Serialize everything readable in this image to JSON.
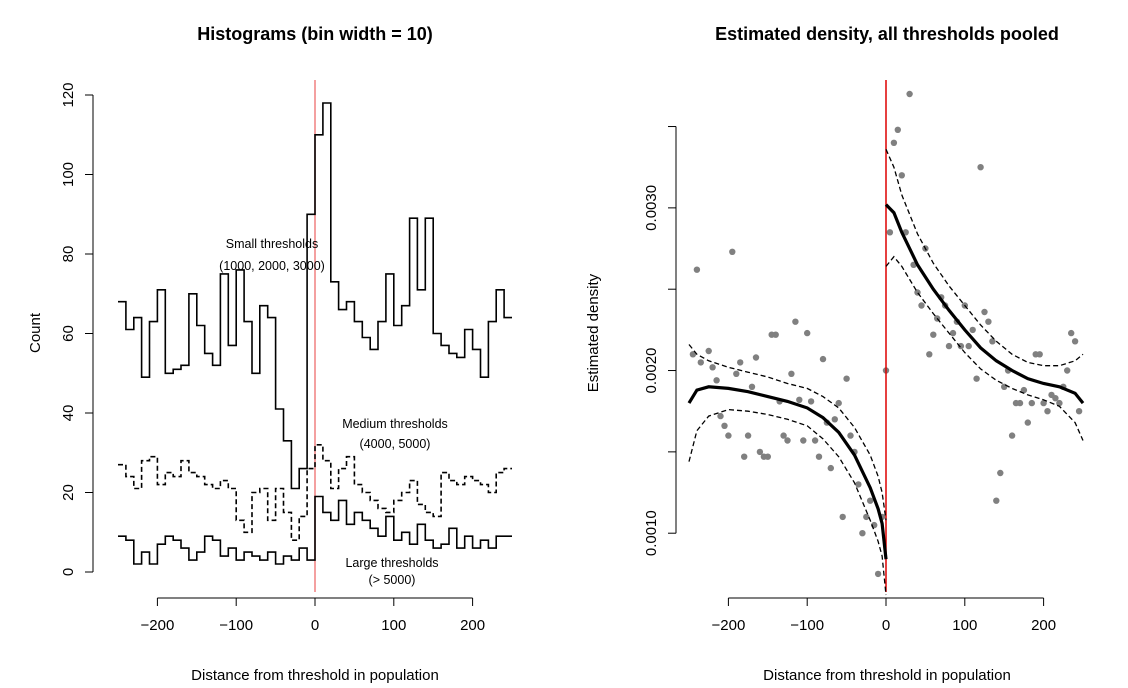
{
  "left_panel": {
    "title": "Histograms (bin width = 10)",
    "xlabel": "Distance from threshold in population",
    "ylabel": "Count",
    "xticks": [
      "−200",
      "−100",
      "0",
      "100",
      "200"
    ],
    "yticks": [
      "0",
      "20",
      "40",
      "60",
      "80",
      "100",
      "120"
    ],
    "annotations": {
      "small_line1": "Small thresholds",
      "small_line2": "(1000, 2000, 3000)",
      "medium_line1": "Medium thresholds",
      "medium_line2": "(4000, 5000)",
      "large_line1": "Large thresholds",
      "large_line2": "(> 5000)"
    }
  },
  "right_panel": {
    "title": "Estimated density, all thresholds pooled",
    "xlabel": "Distance from threshold in population",
    "ylabel": "Estimated density",
    "xticks": [
      "−200",
      "−100",
      "0",
      "100",
      "200"
    ],
    "yticks": [
      "0.0010",
      "0.0020",
      "0.0030"
    ]
  },
  "colors": {
    "threshold_line_left": "#f08080",
    "threshold_line_right": "#dd0000",
    "points": "#808080",
    "lines": "#000000"
  },
  "chart_data": [
    {
      "type": "histogram",
      "title": "Histograms (bin width = 10)",
      "xlabel": "Distance from threshold in population",
      "ylabel": "Count",
      "xlim": [
        -250,
        250
      ],
      "ylim": [
        0,
        120
      ],
      "bin_width": 10,
      "bin_edges_start": -250,
      "vline_x": 0,
      "series": [
        {
          "name": "Small thresholds (1000, 2000, 3000)",
          "style": "solid",
          "values": [
            68,
            61,
            64,
            49,
            63,
            71,
            50,
            51,
            52,
            70,
            62,
            55,
            52,
            75,
            57,
            76,
            63,
            50,
            67,
            64,
            41,
            33,
            21,
            26,
            90,
            110,
            118,
            73,
            66,
            68,
            63,
            59,
            56,
            63,
            75,
            62,
            67,
            89,
            71,
            89,
            60,
            57,
            55,
            54,
            61,
            56,
            49,
            63,
            71,
            64
          ]
        },
        {
          "name": "Medium thresholds (4000, 5000)",
          "style": "dashed",
          "values": [
            27,
            24,
            21,
            28,
            29,
            22,
            25,
            24,
            28,
            25,
            24,
            22,
            21,
            23,
            21,
            13,
            10,
            20,
            21,
            13,
            21,
            15,
            8,
            14,
            26,
            32,
            28,
            21,
            26,
            29,
            22,
            20,
            18,
            16,
            15,
            18,
            20,
            23,
            17,
            15,
            14,
            25,
            23,
            22,
            24,
            23,
            22,
            20,
            25,
            26
          ]
        },
        {
          "name": "Large thresholds (> 5000)",
          "style": "solid",
          "values": [
            9,
            8,
            2,
            5,
            2,
            7,
            9,
            8,
            6,
            3,
            5,
            9,
            8,
            4,
            6,
            3,
            5,
            4,
            3,
            5,
            2,
            4,
            3,
            6,
            3,
            19,
            15,
            13,
            18,
            12,
            15,
            13,
            11,
            9,
            14,
            8,
            10,
            7,
            12,
            8,
            6,
            7,
            11,
            6,
            9,
            6,
            8,
            6,
            9,
            9
          ]
        }
      ]
    },
    {
      "type": "scatter",
      "title": "Estimated density, all thresholds pooled",
      "xlabel": "Distance from threshold in population",
      "ylabel": "Estimated density",
      "xlim": [
        -250,
        250
      ],
      "ylim": [
        0.0007,
        0.0037
      ],
      "vline_x": 0,
      "points": [
        [
          -245,
          0.0021
        ],
        [
          -240,
          0.00262
        ],
        [
          -235,
          0.00205
        ],
        [
          -225,
          0.00212
        ],
        [
          -220,
          0.00202
        ],
        [
          -215,
          0.00194
        ],
        [
          -210,
          0.00172
        ],
        [
          -205,
          0.00166
        ],
        [
          -200,
          0.0016
        ],
        [
          -195,
          0.00273
        ],
        [
          -190,
          0.00198
        ],
        [
          -185,
          0.00205
        ],
        [
          -180,
          0.00147
        ],
        [
          -175,
          0.0016
        ],
        [
          -170,
          0.0019
        ],
        [
          -165,
          0.00208
        ],
        [
          -160,
          0.0015
        ],
        [
          -155,
          0.00147
        ],
        [
          -150,
          0.00147
        ],
        [
          -145,
          0.00222
        ],
        [
          -140,
          0.00222
        ],
        [
          -135,
          0.00181
        ],
        [
          -130,
          0.0016
        ],
        [
          -125,
          0.00157
        ],
        [
          -120,
          0.00198
        ],
        [
          -115,
          0.0023
        ],
        [
          -110,
          0.00182
        ],
        [
          -105,
          0.00157
        ],
        [
          -100,
          0.00223
        ],
        [
          -95,
          0.00181
        ],
        [
          -90,
          0.00157
        ],
        [
          -85,
          0.00147
        ],
        [
          -80,
          0.00207
        ],
        [
          -75,
          0.00168
        ],
        [
          -70,
          0.0014
        ],
        [
          -65,
          0.0017
        ],
        [
          -60,
          0.0018
        ],
        [
          -55,
          0.0011
        ],
        [
          -50,
          0.00195
        ],
        [
          -45,
          0.0016
        ],
        [
          -40,
          0.0015
        ],
        [
          -35,
          0.0013
        ],
        [
          -30,
          0.001
        ],
        [
          -25,
          0.0011
        ],
        [
          -20,
          0.0012
        ],
        [
          -15,
          0.00105
        ],
        [
          -10,
          0.00075
        ],
        [
          -5,
          0.0011
        ],
        [
          0,
          0.002
        ],
        [
          5,
          0.00285
        ],
        [
          10,
          0.0034
        ],
        [
          15,
          0.00348
        ],
        [
          20,
          0.0032
        ],
        [
          25,
          0.00285
        ],
        [
          30,
          0.0037
        ],
        [
          35,
          0.00265
        ],
        [
          40,
          0.00248
        ],
        [
          45,
          0.0024
        ],
        [
          50,
          0.00275
        ],
        [
          55,
          0.0021
        ],
        [
          60,
          0.00222
        ],
        [
          65,
          0.00232
        ],
        [
          70,
          0.00245
        ],
        [
          75,
          0.0024
        ],
        [
          80,
          0.00215
        ],
        [
          85,
          0.00223
        ],
        [
          90,
          0.0023
        ],
        [
          95,
          0.00215
        ],
        [
          100,
          0.0024
        ],
        [
          105,
          0.00215
        ],
        [
          110,
          0.00225
        ],
        [
          115,
          0.00195
        ],
        [
          120,
          0.00325
        ],
        [
          125,
          0.00236
        ],
        [
          130,
          0.0023
        ],
        [
          135,
          0.00218
        ],
        [
          140,
          0.0012
        ],
        [
          145,
          0.00137
        ],
        [
          150,
          0.0019
        ],
        [
          155,
          0.002
        ],
        [
          160,
          0.0016
        ],
        [
          165,
          0.0018
        ],
        [
          170,
          0.0018
        ],
        [
          175,
          0.00188
        ],
        [
          180,
          0.00168
        ],
        [
          185,
          0.0018
        ],
        [
          190,
          0.0021
        ],
        [
          195,
          0.0021
        ],
        [
          200,
          0.0018
        ],
        [
          205,
          0.00175
        ],
        [
          210,
          0.00185
        ],
        [
          215,
          0.00183
        ],
        [
          220,
          0.0018
        ],
        [
          225,
          0.0019
        ],
        [
          230,
          0.002
        ],
        [
          235,
          0.00223
        ],
        [
          240,
          0.00218
        ],
        [
          245,
          0.00175
        ]
      ],
      "fit_left": [
        [
          -250,
          0.0018
        ],
        [
          -240,
          0.00188
        ],
        [
          -225,
          0.0019
        ],
        [
          -200,
          0.00189
        ],
        [
          -175,
          0.00187
        ],
        [
          -150,
          0.00184
        ],
        [
          -125,
          0.00181
        ],
        [
          -100,
          0.00177
        ],
        [
          -80,
          0.00171
        ],
        [
          -60,
          0.00162
        ],
        [
          -40,
          0.00148
        ],
        [
          -20,
          0.00128
        ],
        [
          -10,
          0.00115
        ],
        [
          -5,
          0.00106
        ],
        [
          0,
          0.00084
        ]
      ],
      "fit_right": [
        [
          0,
          0.00302
        ],
        [
          10,
          0.00297
        ],
        [
          20,
          0.00285
        ],
        [
          40,
          0.00265
        ],
        [
          60,
          0.0025
        ],
        [
          80,
          0.00237
        ],
        [
          100,
          0.00225
        ],
        [
          120,
          0.00214
        ],
        [
          140,
          0.00206
        ],
        [
          160,
          0.002
        ],
        [
          180,
          0.00195
        ],
        [
          200,
          0.00192
        ],
        [
          220,
          0.0019
        ],
        [
          240,
          0.00186
        ],
        [
          250,
          0.0018
        ]
      ],
      "ci_left_upper": [
        [
          -250,
          0.00216
        ],
        [
          -240,
          0.0021
        ],
        [
          -225,
          0.00206
        ],
        [
          -200,
          0.00202
        ],
        [
          -175,
          0.00199
        ],
        [
          -150,
          0.00196
        ],
        [
          -125,
          0.00192
        ],
        [
          -100,
          0.00189
        ],
        [
          -80,
          0.00184
        ],
        [
          -60,
          0.00177
        ],
        [
          -40,
          0.00165
        ],
        [
          -20,
          0.00148
        ],
        [
          -10,
          0.00135
        ],
        [
          -5,
          0.00125
        ],
        [
          0,
          0.00108
        ]
      ],
      "ci_left_lower": [
        [
          -250,
          0.00144
        ],
        [
          -240,
          0.00163
        ],
        [
          -225,
          0.00172
        ],
        [
          -200,
          0.00176
        ],
        [
          -175,
          0.00175
        ],
        [
          -150,
          0.00173
        ],
        [
          -125,
          0.0017
        ],
        [
          -100,
          0.00166
        ],
        [
          -80,
          0.00158
        ],
        [
          -60,
          0.00147
        ],
        [
          -40,
          0.00131
        ],
        [
          -20,
          0.00108
        ],
        [
          -10,
          0.00095
        ],
        [
          -5,
          0.00086
        ],
        [
          0,
          0.00062
        ]
      ],
      "ci_right_upper": [
        [
          0,
          0.00336
        ],
        [
          10,
          0.00325
        ],
        [
          20,
          0.00308
        ],
        [
          40,
          0.00284
        ],
        [
          60,
          0.00266
        ],
        [
          80,
          0.00252
        ],
        [
          100,
          0.0024
        ],
        [
          120,
          0.00228
        ],
        [
          140,
          0.00218
        ],
        [
          160,
          0.0021
        ],
        [
          180,
          0.00205
        ],
        [
          200,
          0.00203
        ],
        [
          220,
          0.00203
        ],
        [
          240,
          0.00206
        ],
        [
          250,
          0.0021
        ]
      ],
      "ci_right_lower": [
        [
          0,
          0.00264
        ],
        [
          10,
          0.0027
        ],
        [
          20,
          0.00264
        ],
        [
          40,
          0.00248
        ],
        [
          60,
          0.00235
        ],
        [
          80,
          0.00223
        ],
        [
          100,
          0.00211
        ],
        [
          120,
          0.00201
        ],
        [
          140,
          0.00194
        ],
        [
          160,
          0.00189
        ],
        [
          180,
          0.00185
        ],
        [
          200,
          0.00182
        ],
        [
          220,
          0.00178
        ],
        [
          240,
          0.00168
        ],
        [
          250,
          0.00157
        ]
      ]
    }
  ]
}
